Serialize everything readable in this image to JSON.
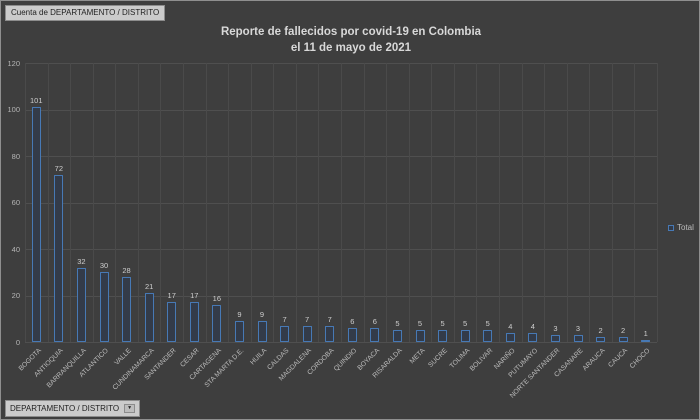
{
  "window": {
    "background": "#3e3e3e",
    "accent_blue": "#4779b5",
    "grid_color": "#4f4f4f",
    "text_color": "#bcbcbc"
  },
  "pivot": {
    "count_field_button": "Cuenta de DEPARTAMENTO / DISTRITO",
    "axis_field_button": "DEPARTAMENTO / DISTRITO",
    "axis_field_arrow": "▼"
  },
  "chart_data": {
    "type": "bar",
    "title": "Reporte de fallecidos por covid-19 en Colombia",
    "subtitle": "el 11 de mayo de 2021",
    "legend": {
      "position": "right",
      "entries": [
        "Total"
      ]
    },
    "series_name": "Total",
    "categories": [
      "BOGOTA",
      "ANTIOQUIA",
      "BARRANQUILLA",
      "ATLANTICO",
      "VALLE",
      "CUNDINAMARCA",
      "SANTANDER",
      "CESAR",
      "CARTAGENA",
      "STA MARTA D.E.",
      "HUILA",
      "CALDAS",
      "MAGDALENA",
      "CORDOBA",
      "QUINDIO",
      "BOYACA",
      "RISARALDA",
      "META",
      "SUCRE",
      "TOLIMA",
      "BOLIVAR",
      "NARIÑO",
      "PUTUMAYO",
      "NORTE SANTANDER",
      "CASANARE",
      "ARAUCA",
      "CAUCA",
      "CHOCO"
    ],
    "values": [
      101,
      72,
      32,
      30,
      28,
      21,
      17,
      17,
      16,
      9,
      9,
      7,
      7,
      7,
      6,
      6,
      5,
      5,
      5,
      5,
      5,
      4,
      4,
      3,
      3,
      2,
      2,
      1
    ],
    "xlabel": "",
    "ylabel": "",
    "ylim": [
      0,
      120
    ],
    "ytick_step": 20,
    "grid": "both",
    "data_labels": true
  }
}
